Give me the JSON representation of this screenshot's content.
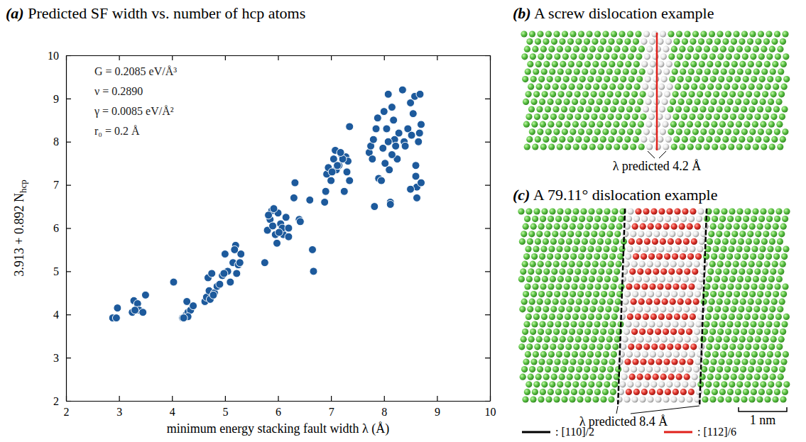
{
  "chart_data": {
    "type": "scatter",
    "title": "(a) Predicted SF width vs. number of hcp atoms",
    "x_label": "minimum energy stacking fault width λ (Å)",
    "y_label": "3.913 + 0.892 N",
    "y_label_subscript": "hcp",
    "annotations": [
      "G = 0.2085 eV/Å³",
      "ν = 0.2890",
      "γ = 0.0085 eV/Å²",
      "r₀ = 0.2 Å"
    ],
    "x": [
      2.88,
      2.95,
      2.97,
      3.25,
      3.28,
      3.35,
      3.38,
      3.45,
      3.5,
      3.3,
      4.03,
      4.2,
      4.25,
      4.27,
      4.3,
      4.28,
      4.35,
      4.4,
      4.3,
      4.22,
      4.62,
      4.65,
      4.7,
      4.68,
      4.75,
      4.8,
      4.85,
      4.72,
      4.78,
      4.9,
      4.95,
      5.0,
      5.05,
      5.1,
      5.15,
      5.2,
      5.25,
      5.3,
      5.22,
      5.18,
      5.28,
      4.98,
      5.75,
      5.8,
      5.85,
      5.88,
      5.9,
      5.95,
      6.0,
      6.05,
      5.98,
      6.1,
      6.15,
      6.2,
      5.92,
      6.08,
      5.82,
      6.2,
      6.02,
      6.3,
      6.32,
      6.4,
      6.42,
      6.6,
      6.65,
      6.67,
      6.88,
      6.9,
      6.92,
      6.95,
      7.0,
      7.05,
      7.08,
      7.1,
      7.15,
      7.2,
      7.25,
      7.28,
      7.3,
      7.32,
      7.35,
      7.35,
      7.22,
      7.12,
      7.02,
      7.18,
      7.72,
      7.75,
      7.78,
      7.8,
      7.82,
      7.85,
      7.88,
      7.9,
      7.95,
      7.98,
      8.0,
      8.02,
      8.05,
      8.08,
      8.1,
      8.12,
      8.15,
      8.18,
      8.2,
      8.22,
      8.25,
      8.28,
      8.35,
      8.38,
      8.45,
      8.5,
      8.52,
      8.55,
      8.58,
      8.6,
      8.6,
      8.62,
      8.62,
      8.65,
      8.67,
      8.68,
      8.7,
      8.7,
      8.5,
      8.12,
      8.15,
      8.08,
      8.4
    ],
    "values": [
      3.92,
      3.92,
      4.15,
      4.05,
      4.32,
      4.25,
      4.1,
      4.05,
      4.45,
      4.1,
      4.75,
      3.92,
      3.95,
      4.0,
      4.05,
      4.3,
      4.1,
      4.2,
      3.95,
      3.92,
      4.3,
      4.4,
      4.55,
      4.85,
      4.95,
      4.5,
      4.65,
      4.35,
      4.45,
      4.7,
      4.9,
      5.4,
      5.0,
      4.75,
      5.2,
      5.6,
      5.15,
      5.4,
      4.95,
      5.5,
      5.2,
      4.95,
      5.2,
      5.95,
      6.2,
      6.4,
      6.05,
      5.85,
      6.35,
      6.1,
      5.65,
      5.85,
      6.25,
      5.8,
      6.45,
      6.0,
      6.3,
      6.0,
      5.9,
      6.7,
      7.05,
      6.2,
      6.15,
      6.65,
      5.5,
      5.0,
      6.6,
      6.85,
      7.25,
      7.4,
      7.1,
      7.6,
      7.8,
      7.35,
      7.45,
      7.7,
      6.85,
      7.65,
      7.3,
      7.55,
      8.35,
      7.1,
      7.6,
      7.45,
      7.3,
      7.75,
      7.75,
      7.9,
      7.6,
      8.05,
      6.5,
      8.3,
      8.55,
      7.15,
      7.1,
      7.85,
      8.7,
      7.5,
      8.3,
      9.1,
      7.35,
      6.6,
      8.8,
      8.5,
      8.05,
      7.9,
      7.6,
      8.2,
      9.2,
      8.0,
      8.3,
      8.9,
      8.15,
      8.65,
      9.05,
      7.45,
      7.2,
      6.95,
      6.7,
      8.0,
      8.2,
      9.1,
      8.4,
      7.05,
      6.9,
      6.55,
      7.7,
      8.0,
      7.9
    ],
    "color": "#1d5a9c",
    "marker": "circle",
    "xlim": [
      2,
      10
    ],
    "ylim": [
      2,
      10
    ],
    "xticks": [
      2,
      3,
      4,
      5,
      6,
      7,
      8,
      9,
      10
    ],
    "yticks": [
      2,
      3,
      4,
      5,
      6,
      7,
      8,
      9,
      10
    ],
    "grid": false
  },
  "panels": [
    {
      "title": "(b) A screw dislocation example",
      "annotation": "λ predicted 4.2 Å"
    },
    {
      "title": "(c) A 79.11° dislocation example",
      "annotation": "λ predicted 8.4 Å",
      "scale_bar": "1 nm"
    }
  ],
  "legend_items": [
    {
      "label": ": [110]/2",
      "color": "#000000"
    },
    {
      "label": ": [112]/6",
      "color": "#e0201b"
    }
  ]
}
